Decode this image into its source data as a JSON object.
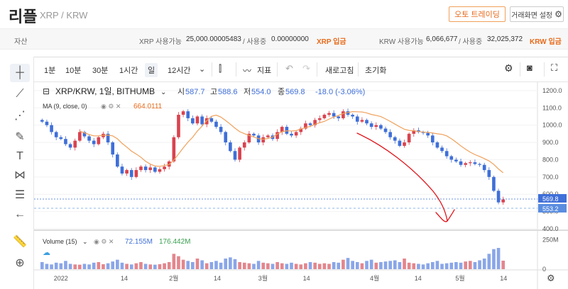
{
  "header": {
    "title": "리플",
    "subtitle": "XRP / KRW",
    "trade_button": "오토 트레이딩",
    "settings_button": "거래화면 설정"
  },
  "assets": {
    "label": "자산",
    "xrp_available_label": "XRP 사용가능",
    "xrp_available": "25,000.00005483",
    "xrp_inuse_label": "/ 사용중",
    "xrp_inuse": "0.00000000",
    "xrp_deposit": "XRP 입금",
    "krw_available_label": "KRW 사용가능",
    "krw_available": "6,066,677",
    "krw_inuse_label": "/ 사용중",
    "krw_inuse": "32,025,372",
    "krw_deposit": "KRW 입금"
  },
  "toolbar": {
    "intervals": [
      "1분",
      "10분",
      "30분",
      "1시간",
      "일",
      "12시간"
    ],
    "active_interval": "일",
    "indicator": "지표",
    "refresh": "새로고침",
    "reset": "초기화"
  },
  "legend": {
    "symbol": "XRP/KRW, 1일, BITHUMB",
    "open_label": "시",
    "open": "587.7",
    "high_label": "고",
    "high": "588.6",
    "low_label": "저",
    "low": "554.0",
    "close_label": "종",
    "close": "569.8",
    "change": "-18.0 (-3.06%)",
    "ma_label": "MA (9, close, 0)",
    "ma_value": "664.0111",
    "volume_label": "Volume (15)",
    "volume_value1": "72.155M",
    "volume_value2": "176.442M"
  },
  "colors": {
    "up": "#d9434f",
    "down": "#3f6fd8",
    "ma": "#f0a05a",
    "accent": "#e86a1a"
  },
  "chart_data": {
    "type": "candlestick",
    "y_axis_ticks": [
      "1200.0",
      "1100.0",
      "1000.0",
      "900.0",
      "800.0",
      "700.0",
      "600.0",
      "500.0",
      "400.0"
    ],
    "price_labels": [
      "569.8",
      "553.2"
    ],
    "volume_axis_ticks": [
      "250M",
      "0"
    ],
    "x_axis_ticks": [
      "2022",
      "14",
      "2월",
      "14",
      "3월",
      "14",
      "4월",
      "14",
      "5월",
      "14"
    ],
    "ylim": [
      400,
      1220
    ],
    "closes": [
      1020,
      1000,
      960,
      930,
      920,
      890,
      870,
      910,
      960,
      935,
      910,
      890,
      930,
      950,
      900,
      830,
      760,
      720,
      740,
      700,
      740,
      760,
      740,
      755,
      730,
      745,
      760,
      790,
      930,
      1060,
      1080,
      1040,
      1010,
      1050,
      1005,
      1040,
      1020,
      990,
      960,
      900,
      850,
      800,
      870,
      900,
      950,
      940,
      900,
      930,
      940,
      920,
      960,
      990,
      950,
      940,
      960,
      980,
      1010,
      1000,
      1030,
      1040,
      1060,
      1070,
      1050,
      1040,
      1080,
      1060,
      1050,
      1020,
      1030,
      1010,
      990,
      1000,
      980,
      960,
      930,
      910,
      880,
      900,
      950,
      970,
      960,
      955,
      940,
      900,
      870,
      850,
      820,
      800,
      790,
      770,
      780,
      785,
      775,
      770,
      740,
      700,
      620,
      553,
      570
    ],
    "volumes": [
      60,
      45,
      40,
      55,
      50,
      70,
      45,
      40,
      38,
      45,
      40,
      55,
      60,
      42,
      50,
      65,
      80,
      55,
      45,
      40,
      50,
      60,
      45,
      40,
      38,
      42,
      50,
      60,
      130,
      110,
      80,
      70,
      60,
      90,
      75,
      50,
      60,
      70,
      55,
      90,
      100,
      85,
      60,
      55,
      50,
      45,
      70,
      55,
      50,
      45,
      60,
      50,
      45,
      55,
      45,
      40,
      50,
      60,
      55,
      45,
      50,
      45,
      60,
      55,
      80,
      95,
      70,
      60,
      50,
      70,
      80,
      55,
      60,
      65,
      70,
      75,
      60,
      90,
      55,
      50,
      45,
      40,
      50,
      60,
      70,
      45,
      50,
      55,
      60,
      55,
      65,
      70,
      60,
      75,
      90,
      130,
      170,
      180,
      72
    ]
  }
}
